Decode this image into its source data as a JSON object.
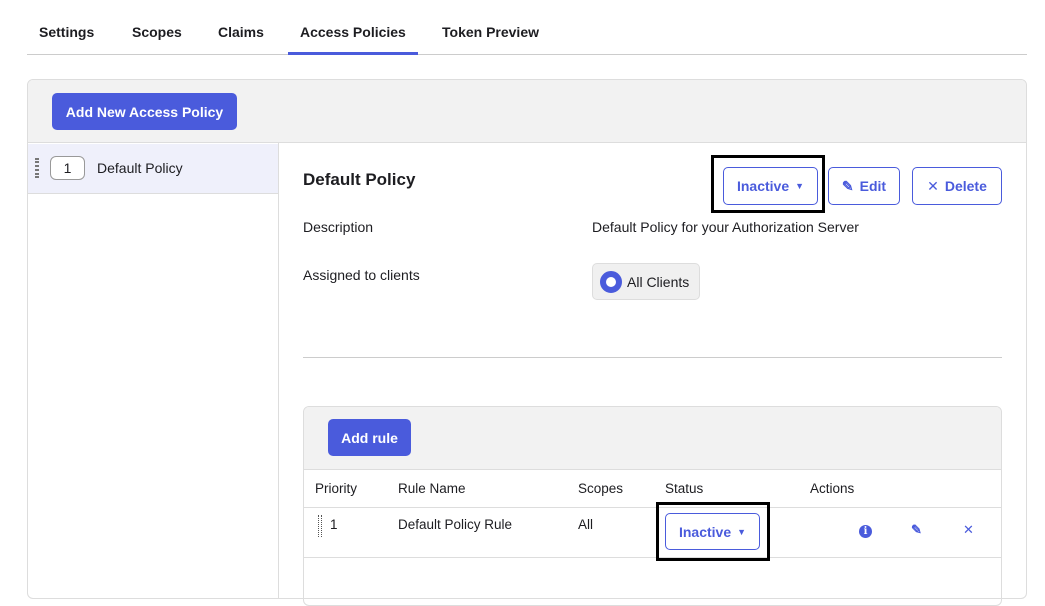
{
  "tabs": [
    {
      "label": "Settings"
    },
    {
      "label": "Scopes"
    },
    {
      "label": "Claims"
    },
    {
      "label": "Access Policies",
      "active": true
    },
    {
      "label": "Token Preview"
    }
  ],
  "add_policy_label": "Add New Access Policy",
  "policies": [
    {
      "priority": "1",
      "name": "Default Policy"
    }
  ],
  "detail": {
    "title": "Default Policy",
    "status_label": "Inactive",
    "edit_label": "Edit",
    "delete_label": "Delete",
    "description_label": "Description",
    "description_value": "Default Policy for your Authorization Server",
    "assigned_label": "Assigned to clients",
    "assigned_value": "All Clients"
  },
  "rules": {
    "add_rule_label": "Add rule",
    "columns": [
      "Priority",
      "Rule Name",
      "Scopes",
      "Status",
      "Actions"
    ],
    "rows": [
      {
        "priority": "1",
        "name": "Default Policy Rule",
        "scopes": "All",
        "status": "Inactive"
      }
    ]
  },
  "colors": {
    "accent": "#4a5bdc"
  }
}
